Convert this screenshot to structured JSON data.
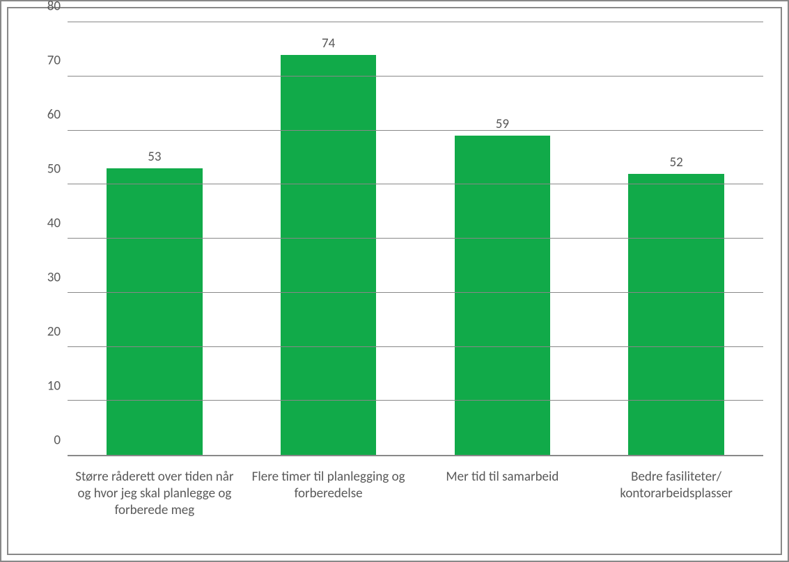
{
  "chart": {
    "type": "bar",
    "categories": [
      "Større råderett over tiden når og hvor jeg skal planlegge og forberede meg",
      "Flere timer til planlegging og forberedelse",
      "Mer tid til samarbeid",
      "Bedre fasiliteter/ kontorarbeidsplasser"
    ],
    "values": [
      53,
      74,
      59,
      52
    ],
    "value_labels": [
      "53",
      "74",
      "59",
      "52"
    ],
    "bar_color": "#11aa49",
    "ylim": [
      0,
      80
    ],
    "ytick_step": 10,
    "yticks": [
      "0",
      "10",
      "20",
      "30",
      "40",
      "50",
      "60",
      "70",
      "80"
    ],
    "grid_color": "#888888",
    "axis_color": "#888888",
    "text_color": "#595959",
    "tick_fontsize": 19,
    "label_fontsize": 19,
    "value_fontsize": 19,
    "background_color": "#ffffff",
    "bar_width": 0.55
  }
}
